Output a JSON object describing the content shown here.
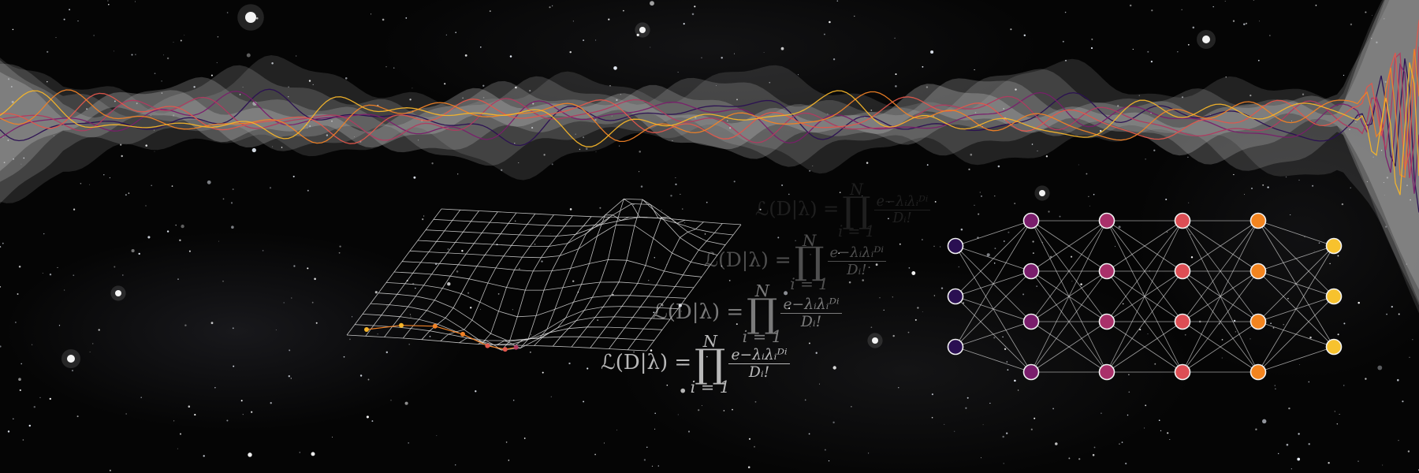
{
  "formula": {
    "lhs": "ℒ(D|λ) =",
    "product_symbol": "∏",
    "upper_limit": "N",
    "lower_limit": "i = 1",
    "numerator": "e−λᵢλᵢᴰⁱ",
    "denominator": "Dᵢ!"
  },
  "colors": {
    "background": "#050505",
    "band": "#bdbdbd",
    "series": [
      "#2a0f52",
      "#7a1d6c",
      "#b23a60",
      "#e2574c",
      "#f18226",
      "#f6b52a"
    ],
    "network_layers": [
      "#2a0f52",
      "#7a1d6c",
      "#a9306a",
      "#dd4e55",
      "#f3841f",
      "#f7c22e"
    ]
  },
  "icons": [
    "starfield",
    "wave-band",
    "surface-mesh",
    "neural-network"
  ]
}
